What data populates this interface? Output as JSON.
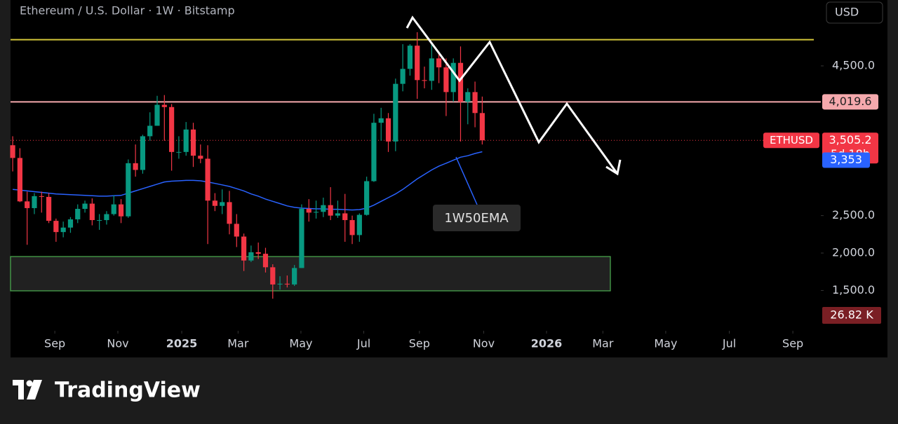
{
  "chart_data": {
    "type": "candlestick",
    "title": "Ethereum / U.S. Dollar · 1W · Bitstamp",
    "currency": "USD",
    "brand": "TradingView",
    "up_color": "#089981",
    "down_color": "#f23645",
    "open": [
      3440,
      3270,
      2690,
      2600,
      2760,
      2750,
      2430,
      2280,
      2340,
      2450,
      2590,
      2660,
      2440,
      2440,
      2520,
      2650,
      2490,
      3200,
      3110,
      3560,
      3700,
      3980,
      3950,
      3350,
      3350,
      3650,
      3300,
      3260,
      2700,
      2630,
      2680,
      2390,
      2220,
      1900,
      2010,
      1990,
      1810,
      1580,
      1590,
      1580,
      1800,
      2590,
      2540,
      2550,
      2640,
      2500,
      2530,
      2440,
      2240,
      2510,
      2960,
      3740,
      3800,
      3490,
      4260,
      4460,
      4770,
      4310,
      4300,
      4600,
      4480,
      4150,
      4540,
      4020,
      4150,
      3870
    ],
    "high": [
      3560,
      3400,
      2820,
      2800,
      2820,
      2800,
      2460,
      2420,
      2480,
      2650,
      2700,
      2730,
      2520,
      2560,
      2770,
      2720,
      3250,
      3450,
      3580,
      3880,
      4100,
      4110,
      3990,
      3560,
      3750,
      3740,
      3450,
      3440,
      2800,
      2850,
      2830,
      2520,
      2260,
      2100,
      2140,
      2070,
      1850,
      1690,
      1700,
      1840,
      2650,
      2720,
      2700,
      2740,
      2880,
      2700,
      2790,
      2500,
      2530,
      3020,
      3860,
      3940,
      3870,
      4330,
      4790,
      4790,
      4950,
      4490,
      4790,
      4680,
      4600,
      4600,
      4760,
      4200,
      4290,
      4090
    ],
    "low": [
      3090,
      2680,
      2110,
      2520,
      2540,
      2400,
      2150,
      2210,
      2270,
      2400,
      2540,
      2370,
      2310,
      2380,
      2500,
      2400,
      2470,
      3020,
      3060,
      3500,
      3700,
      3500,
      3100,
      3260,
      3300,
      3150,
      3200,
      2120,
      2560,
      2520,
      2250,
      2080,
      1760,
      1880,
      1920,
      1740,
      1390,
      1510,
      1540,
      1560,
      1800,
      2420,
      2460,
      2480,
      2440,
      2470,
      2150,
      2120,
      2150,
      2500,
      2950,
      3500,
      3350,
      3360,
      4160,
      4370,
      4060,
      4200,
      4180,
      4270,
      3830,
      4020,
      3490,
      3720,
      3680,
      3450
    ],
    "close": [
      3270,
      2690,
      2600,
      2760,
      2750,
      2430,
      2280,
      2340,
      2450,
      2590,
      2660,
      2440,
      2440,
      2520,
      2650,
      2490,
      3200,
      3110,
      3560,
      3700,
      3980,
      3950,
      3350,
      3350,
      3650,
      3300,
      3260,
      2700,
      2630,
      2680,
      2390,
      2220,
      1900,
      2010,
      1990,
      1810,
      1580,
      1590,
      1580,
      1800,
      2590,
      2540,
      2550,
      2640,
      2500,
      2530,
      2440,
      2240,
      2510,
      2960,
      3740,
      3800,
      3490,
      4260,
      4460,
      4770,
      4310,
      4300,
      4600,
      4480,
      4150,
      4540,
      4020,
      4150,
      3870,
      3505.2
    ],
    "ema": {
      "name": "1W50EMA",
      "color": "#2962ff",
      "last_label": "3,353",
      "values": [
        2850,
        2840,
        2830,
        2820,
        2810,
        2800,
        2790,
        2785,
        2780,
        2775,
        2770,
        2765,
        2760,
        2760,
        2765,
        2770,
        2800,
        2830,
        2860,
        2890,
        2920,
        2950,
        2960,
        2965,
        2970,
        2970,
        2965,
        2950,
        2930,
        2910,
        2890,
        2860,
        2830,
        2790,
        2760,
        2720,
        2690,
        2660,
        2630,
        2610,
        2600,
        2595,
        2590,
        2590,
        2585,
        2585,
        2580,
        2575,
        2580,
        2600,
        2640,
        2690,
        2740,
        2790,
        2850,
        2920,
        2990,
        3050,
        3110,
        3160,
        3200,
        3240,
        3280,
        3300,
        3330,
        3353
      ]
    },
    "ylim": [
      980,
      5380
    ],
    "yticks": [
      {
        "value": 4500,
        "label": "4,500.0"
      },
      {
        "value": 2500,
        "label": "2,500.0"
      },
      {
        "value": 2000,
        "label": "2,000.0"
      },
      {
        "value": 1500,
        "label": "1,500.0"
      }
    ],
    "xlim": [
      -0.3,
      110.9
    ],
    "xticks": [
      {
        "value": 5.83,
        "label": "Sep"
      },
      {
        "value": 14.56,
        "label": "Nov"
      },
      {
        "value": 23.4,
        "label": "2025"
      },
      {
        "value": 31.2,
        "label": "Mar"
      },
      {
        "value": 39.9,
        "label": "May"
      },
      {
        "value": 48.6,
        "label": "Jul"
      },
      {
        "value": 56.3,
        "label": "Sep"
      },
      {
        "value": 65.2,
        "label": "Nov"
      },
      {
        "value": 73.9,
        "label": "2026"
      },
      {
        "value": 81.7,
        "label": "Mar"
      },
      {
        "value": 90.4,
        "label": "May"
      },
      {
        "value": 99.2,
        "label": "Jul"
      },
      {
        "value": 108.0,
        "label": "Sep"
      }
    ],
    "price_lines": [
      {
        "value": 4850,
        "color": "#d4c63a"
      },
      {
        "value": 4019.6,
        "label": "4,019.6",
        "color": "#f5a9ad"
      }
    ],
    "current_price": {
      "symbol": "ETHUSD",
      "value": 3505.2,
      "label": "3,505.2",
      "countdown": "5d 18h"
    },
    "support_zone": {
      "low": 1495,
      "high": 1953
    },
    "volume_label": "26.82 K"
  }
}
